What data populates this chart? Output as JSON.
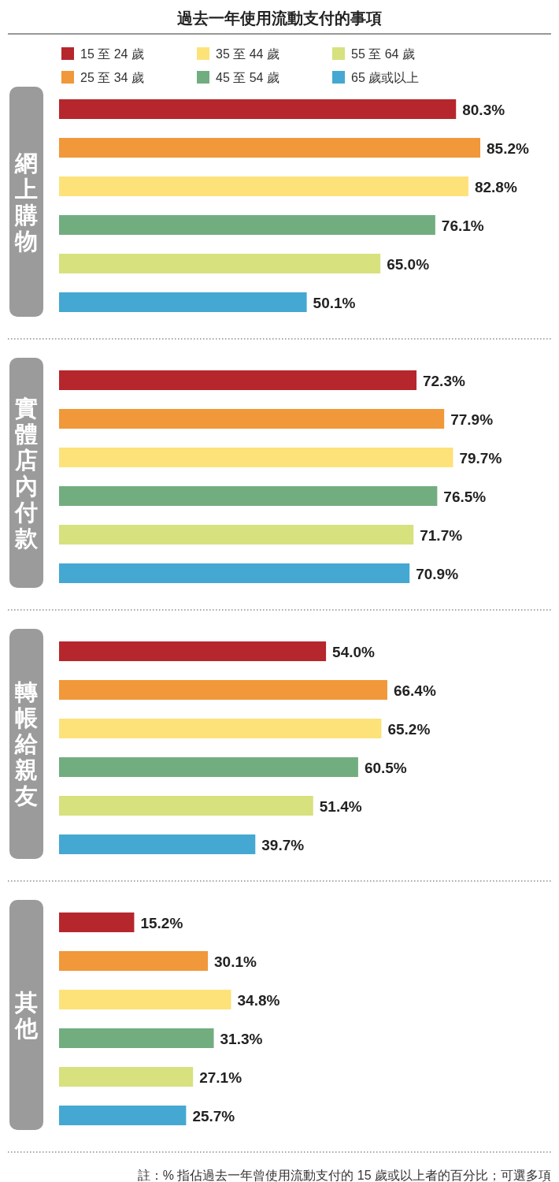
{
  "chart_data": {
    "type": "bar",
    "orientation": "horizontal",
    "title": "過去一年使用流動支付的事項",
    "legend": "top",
    "categories": [
      "網上購物",
      "實體店內付款",
      "轉帳給親友",
      "其他"
    ],
    "series": [
      {
        "name": "15 至 24 歲",
        "color": "#b5272d",
        "values": [
          80.3,
          72.3,
          54.0,
          15.2
        ],
        "value_labels": [
          "80.3%",
          "72.3%",
          "54.0%",
          "15.2%"
        ]
      },
      {
        "name": "25 至 34 歲",
        "color": "#f0983a",
        "values": [
          85.2,
          77.9,
          66.4,
          30.1
        ],
        "value_labels": [
          "85.2%",
          "77.9%",
          "66.4%",
          "30.1%"
        ]
      },
      {
        "name": "35 至 44 歲",
        "color": "#fde27a",
        "values": [
          82.8,
          79.7,
          65.2,
          34.8
        ],
        "value_labels": [
          "82.8%",
          "79.7%",
          "65.2%",
          "34.8%"
        ]
      },
      {
        "name": "45 至 54 歲",
        "color": "#72ad80",
        "values": [
          76.1,
          76.5,
          60.5,
          31.3
        ],
        "value_labels": [
          "76.1%",
          "76.5%",
          "60.5%",
          "31.3%"
        ]
      },
      {
        "name": "55 至 64 歲",
        "color": "#d7e17d",
        "values": [
          65.0,
          71.7,
          51.4,
          27.1
        ],
        "value_labels": [
          "65.0%",
          "71.7%",
          "51.4%",
          "27.1%"
        ]
      },
      {
        "name": "65 歲或以上",
        "color": "#45a8d2",
        "values": [
          50.1,
          70.9,
          39.7,
          25.7
        ],
        "value_labels": [
          "50.1%",
          "70.9%",
          "39.7%",
          "25.7%"
        ]
      }
    ],
    "annotations": [
      "註：% 指佔過去一年曾使用流動支付的 15 歲或以上者的百分比；可選多項"
    ]
  }
}
